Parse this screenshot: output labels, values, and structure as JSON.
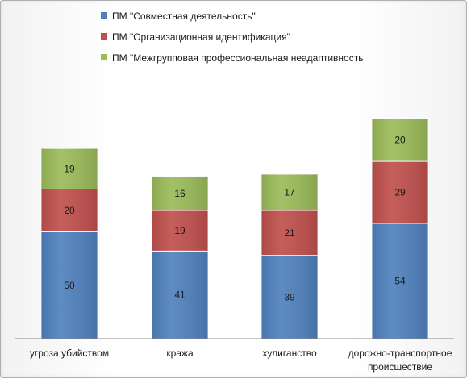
{
  "chart_data": {
    "type": "stacked-bar",
    "title": "",
    "xlabel": "",
    "ylabel": "",
    "ylim": [
      0,
      110
    ],
    "grid": false,
    "legend_position": "top",
    "categories": [
      "угроза убийством",
      "кража",
      "хулиганство",
      "дорожно-транспортное происшествие"
    ],
    "category_lines": [
      [
        "угроза убийством"
      ],
      [
        "кража"
      ],
      [
        "хулиганство"
      ],
      [
        "дорожно-транспортное",
        "происшествие"
      ]
    ],
    "series": [
      {
        "name": "ПМ \"Совместная деятельность\"",
        "color": "#4f81bd",
        "values": [
          50,
          41,
          39,
          54
        ]
      },
      {
        "name": "ПМ \"Организационная идентификация\"",
        "color": "#c0504d",
        "values": [
          20,
          19,
          21,
          29
        ]
      },
      {
        "name": "ПМ \"Межгрупповая профессиональная неадаптивность",
        "color": "#9bbb59",
        "values": [
          19,
          16,
          17,
          20
        ]
      }
    ]
  }
}
